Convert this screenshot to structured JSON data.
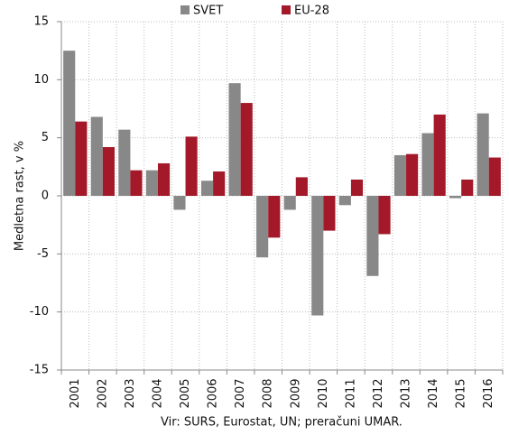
{
  "chart_data": {
    "type": "bar",
    "y_label": "Medletna rast, v %",
    "x_label": "Vir: SURS, Eurostat, UN; preračuni UMAR.",
    "categories": [
      "2001",
      "2002",
      "2003",
      "2004",
      "2005",
      "2006",
      "2007",
      "2008",
      "2009",
      "2010",
      "2011",
      "2012",
      "2013",
      "2014",
      "2015",
      "2016"
    ],
    "series": [
      {
        "name": "SVET",
        "color": "#888888",
        "values": [
          12.5,
          6.8,
          5.7,
          2.2,
          -1.2,
          1.3,
          9.7,
          -5.3,
          -1.2,
          -10.3,
          -0.8,
          -6.9,
          3.5,
          5.4,
          -0.2,
          7.1
        ]
      },
      {
        "name": "EU-28",
        "color": "#a3192a",
        "values": [
          6.4,
          4.2,
          2.2,
          2.8,
          5.1,
          2.1,
          8.0,
          -3.6,
          1.6,
          -3.0,
          1.4,
          -3.3,
          3.6,
          7.0,
          1.4,
          3.3
        ]
      }
    ],
    "ylim": [
      -15,
      15
    ],
    "yticks": [
      -15,
      -10,
      -5,
      0,
      5,
      10,
      15
    ],
    "grid": true
  }
}
